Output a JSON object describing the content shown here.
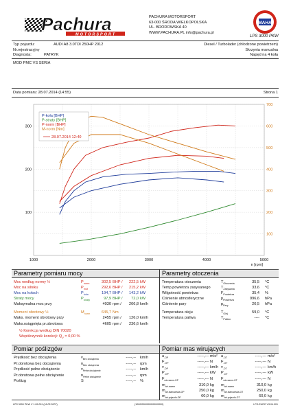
{
  "header": {
    "logo_text": "Pachura",
    "logo_sub": "MOTORSPORT",
    "company": "PACHURA MOTORSPORT",
    "address1": "63-000 ŚRODA WIELKOPOLSKA",
    "address2": "UL. BRODOWSKA 40",
    "web": "WWW.PACHURA.PL info@pachura.pl",
    "badge_text": "MAHA",
    "badge_model": "LPS 3000 PKW"
  },
  "vehicle": {
    "type_label": "Typ pojazdu:",
    "type_value": "AUDI A8 3.0TDI 250HP 2012",
    "reg_label": "Nr.rejestracyjny",
    "diag_label": "Diagnosta:",
    "diag_value": "PATRYK",
    "engine": "Diesel / Turbolader (chłodzone powietrzem)",
    "gearbox": "Skrzynia manualna",
    "drive": "Napęd na 4 koła",
    "mod": "MOD PMC VS SERIA"
  },
  "measure": {
    "date": "Data pomiaru: 28.07.2014 (14:55)",
    "page": "Strona 1"
  },
  "chart_data": {
    "type": "line",
    "legend": [
      "P-koła [BHP]",
      "P-straty [BHP]",
      "P-norm [BHP]",
      "M-norm [Nm]"
    ],
    "legend_date": "28.07.2014 12:40",
    "xlabel": "n [rpm]",
    "xlim": [
      1000,
      5000
    ],
    "x_ticks": [
      "1000",
      "2000",
      "3000",
      "4000",
      "5000"
    ],
    "ylim_left": [
      0,
      350
    ],
    "y_ticks_left": [
      "100",
      "200",
      "300"
    ],
    "ylim_right": [
      0,
      700
    ],
    "y_ticks_right": [
      "100",
      "200",
      "300",
      "400",
      "500",
      "600",
      "700"
    ],
    "series": [
      {
        "name": "P-koła [BHP]",
        "color": "#1f3c9a",
        "axis": "left",
        "x": [
          1450,
          1550,
          1700,
          1900,
          2200,
          2600,
          3000,
          3400,
          3800,
          4200,
          4500
        ],
        "y": [
          95,
          125,
          150,
          170,
          182,
          188,
          190,
          193,
          195,
          195,
          190
        ]
      },
      {
        "name": "P-straty [BHP]",
        "color": "#2f8a2f",
        "axis": "left",
        "x": [
          1450,
          2000,
          2500,
          3000,
          3500,
          4000,
          4500
        ],
        "y": [
          28,
          38,
          50,
          65,
          82,
          100,
          120
        ]
      },
      {
        "name": "P-norm [BHP]",
        "color": "#d0251a",
        "axis": "left",
        "x": [
          1450,
          1550,
          1700,
          1900,
          2200,
          2600,
          3000,
          3400,
          3800,
          4200,
          4500
        ],
        "y": [
          120,
          160,
          200,
          232,
          250,
          262,
          272,
          288,
          296,
          302,
          300
        ]
      },
      {
        "name": "M-norm [Nm]",
        "color": "#d07a1a",
        "axis": "right",
        "x": [
          1450,
          1550,
          1700,
          1850,
          2000,
          2200,
          2500,
          3000,
          3500,
          4000,
          4500
        ],
        "y": [
          400,
          500,
          580,
          630,
          645,
          640,
          610,
          560,
          520,
          480,
          445
        ]
      },
      {
        "name": "P-koła [BHP] (seria)",
        "color": "#1f3c9a",
        "axis": "left",
        "x": [
          1450,
          1700,
          2000,
          2500,
          3000,
          3500,
          4000,
          4300
        ],
        "y": [
          110,
          135,
          150,
          165,
          175,
          180,
          175,
          170
        ]
      },
      {
        "name": "P-norm [BHP] (seria)",
        "color": "#d0251a",
        "axis": "left",
        "x": [
          1450,
          1700,
          2000,
          2500,
          3000,
          3500,
          4000,
          4300
        ],
        "y": [
          125,
          160,
          185,
          210,
          225,
          232,
          230,
          225
        ]
      },
      {
        "name": "M-norm [Nm] (seria)",
        "color": "#d07a1a",
        "axis": "right",
        "x": [
          1450,
          1700,
          2000,
          2500,
          3000,
          3500,
          4000,
          4300
        ],
        "y": [
          430,
          520,
          560,
          560,
          520,
          470,
          420,
          390
        ]
      }
    ]
  },
  "params_power": {
    "title": "Parametry pomiaru mocy",
    "rows": [
      {
        "label": "Moc według normy ½",
        "sym": "P",
        "sub": "norm",
        "v1": "302,5",
        "u1": "BHP /",
        "v2": "222,5",
        "u2": "kW",
        "color": "#d0251a"
      },
      {
        "label": "Moc na silniku",
        "sym": "P",
        "sub": "mot",
        "v1": "292,6",
        "u1": "BHP /",
        "v2": "215,2",
        "u2": "kW",
        "color": "#d0251a"
      },
      {
        "label": "Moc na kołach",
        "sym": "P",
        "sub": "koła",
        "v1": "194,7",
        "u1": "BHP /",
        "v2": "143,2",
        "u2": "kW",
        "color": "#1f3c9a"
      },
      {
        "label": "Straty mocy",
        "sym": "P",
        "sub": "straty",
        "v1": "97,9",
        "u1": "BHP /",
        "v2": "72,0",
        "u2": "kW",
        "color": "#2f8a2f"
      },
      {
        "label": "Maksymalna moc przy",
        "sym": "",
        "sub": "",
        "v1": "4030",
        "u1": "rpm /",
        "v2": "206,8",
        "u2": "km/h",
        "color": "#111"
      },
      {
        "label": "Moment obrotowy ½",
        "sym": "M",
        "sub": "norm",
        "v1": "645,7",
        "u1": "Nm",
        "v2": "",
        "u2": "",
        "color": "#d07a1a"
      },
      {
        "label": "Maks. moment obrotowy przy",
        "sym": "",
        "sub": "",
        "v1": "2455",
        "u1": "rpm /",
        "v2": "126,0",
        "u2": "km/h",
        "color": "#111"
      },
      {
        "label": "Maks.osiągnięta pr.obrotowa",
        "sym": "",
        "sub": "",
        "v1": "4605",
        "u1": "rpm /",
        "v2": "236,6",
        "u2": "km/h",
        "color": "#111"
      }
    ],
    "korekcja": "½ Korekcja według DIN 70020",
    "wsp_label": "Współczynnik korekcji: Q",
    "wsp_value": "= 0,00 %"
  },
  "params_env": {
    "title": "Parametry otoczenia",
    "rows": [
      {
        "label": "Temperatura otoczenia",
        "sym": "T",
        "sub": "Otoczenia",
        "v": "35,5",
        "u": "°C"
      },
      {
        "label": "Temp.powietrza zasysanego",
        "sym": "T",
        "sub": "Zasysania",
        "v": "33,6",
        "u": "°C"
      },
      {
        "label": "Wilgotność powietrza",
        "sym": "F",
        "sub": "Powietrza",
        "v": "35,4",
        "u": "%"
      },
      {
        "label": "Ciśnienie atmosferyczne",
        "sym": "p",
        "sub": "Powietrza",
        "v": "996,6",
        "u": "hPa"
      },
      {
        "label": "Ciśnienie pary",
        "sym": "p",
        "sub": "Pary",
        "v": "20,5",
        "u": "hPa"
      },
      {
        "label": "Temperatura oleju",
        "sym": "T",
        "sub": "Olej",
        "v": "59,0",
        "u": "°C"
      },
      {
        "label": "Temperatura paliwa",
        "sym": "T",
        "sub": "Paliwo",
        "v": "----",
        "u": "°C"
      }
    ]
  },
  "params_slip": {
    "title": "Pomiar poślizgów",
    "rows": [
      {
        "label": "Prędkość bez obciążenia",
        "sym": "v",
        "sub": "Bez obciążenia",
        "v": "-----,--",
        "u": "km/h"
      },
      {
        "label": "Pr.obrotowa bez obciążenia",
        "sym": "n",
        "sub": "Bez obciążenia",
        "v": "-----,--",
        "u": "rpm"
      },
      {
        "label": "Prędkość pełne obciążenie",
        "sym": "v",
        "sub": "Pełne obciążenie",
        "v": "-----,--",
        "u": "km/h"
      },
      {
        "label": "Pr.obrotowa pełne obciążenie",
        "sym": "n",
        "sub": "Pełne obciążenie",
        "v": "-----,--",
        "u": "rpm"
      },
      {
        "label": "Poślizg",
        "sym": "S",
        "sub": "",
        "v": "-----,--",
        "u": "%"
      }
    ]
  },
  "params_mass": {
    "title": "Pomiar mas wirujących",
    "rows": [
      {
        "l": "a",
        "ls": "-OP",
        "lv": "-----,---",
        "lu": "m/s²",
        "r": "a",
        "rs": "-OT",
        "rv": "-----,---",
        "ru": "m/s²"
      },
      {
        "l": "F",
        "ls": "-OP",
        "lv": "-----,---",
        "lu": "N",
        "r": "F",
        "rs": "-OT",
        "rv": "-----,---",
        "ru": "N"
      },
      {
        "l": "v",
        "ls": "-OP",
        "lv": "-----,---",
        "lu": "km/h",
        "r": "v",
        "rs": "-OT",
        "rv": "-----,---",
        "ru": "km/h"
      },
      {
        "l": "P",
        "ls": "-OP",
        "lv": "-----,---",
        "lu": "kW",
        "r": "P",
        "rs": "-OT",
        "rv": "-----,---",
        "ru": "kW"
      },
      {
        "l": "F",
        "ls": "wir.razem-OP",
        "lv": "-----,---",
        "lu": "N",
        "r": "F",
        "rs": "wir.razem-OT",
        "rv": "-----,---",
        "ru": "N"
      },
      {
        "l": "m",
        "ls": "wir.razem",
        "lv": "310,0",
        "lu": "kg",
        "r": "m",
        "rs": "wir.razem",
        "rv": "310,0",
        "ru": "kg"
      },
      {
        "l": "m",
        "ls": "wir.stanowiska-OP",
        "lv": "250,0",
        "lu": "kg",
        "r": "m",
        "rs": "wir.stanowiska-OT",
        "rv": "250,0",
        "ru": "kg"
      },
      {
        "l": "m",
        "ls": "wir.pojazdu-OP",
        "lv": "60,0",
        "lu": "kg",
        "r": "m",
        "rs": "wir.pojazdu-OT",
        "rv": "60,0",
        "ru": "kg"
      }
    ]
  },
  "footer": {
    "left": "LPS 3000 PKW V 1.09.001 (16.02.2007)",
    "center": "(1000/000/0000/000/0000)",
    "right": "LPS-EURO V3.04.001"
  }
}
